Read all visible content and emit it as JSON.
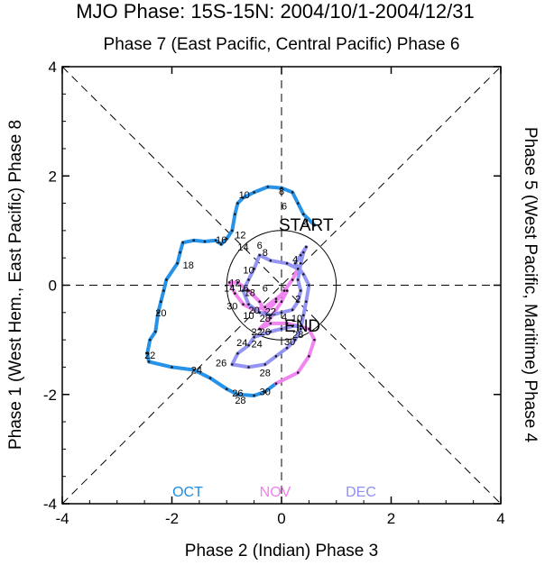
{
  "chart_data": {
    "type": "line",
    "title": "MJO Phase: 15S-15N: 2004/10/1-2004/12/31",
    "top_label": "Phase 7 (East Pacific, Central Pacific) Phase 6",
    "bottom_label": "Phase 2 (Indian) Phase 3",
    "left_label": "Phase 1 (West Hem., East Pacific) Phase 8",
    "right_label": "Phase 5 (West Pacific, Maritime) Phase 4",
    "xlim": [
      -4,
      4
    ],
    "ylim": [
      -4,
      4
    ],
    "x_ticks": [
      -4,
      -2,
      0,
      2,
      4
    ],
    "y_ticks": [
      -4,
      -2,
      0,
      2,
      4
    ],
    "annotations": {
      "start": "START",
      "end": "END"
    },
    "legend": [
      {
        "label": "OCT",
        "color": "#1a8de8"
      },
      {
        "label": "NOV",
        "color": "#f07ff0"
      },
      {
        "label": "DEC",
        "color": "#8f8ff4"
      }
    ],
    "series": [
      {
        "name": "OCT",
        "color": "#1a8de8",
        "points": [
          [
            0.6,
            1.1
          ],
          [
            0.4,
            1.3
          ],
          [
            0.3,
            1.5
          ],
          [
            0.2,
            1.7
          ],
          [
            0.0,
            1.78
          ],
          [
            -0.25,
            1.8
          ],
          [
            -0.5,
            1.7
          ],
          [
            -0.7,
            1.6
          ],
          [
            -0.8,
            1.5
          ],
          [
            -0.85,
            1.3
          ],
          [
            -0.9,
            1.0
          ],
          [
            -1.0,
            0.85
          ],
          [
            -1.1,
            0.75
          ],
          [
            -1.2,
            0.82
          ],
          [
            -1.4,
            0.8
          ],
          [
            -1.6,
            0.82
          ],
          [
            -1.8,
            0.78
          ],
          [
            -1.85,
            0.6
          ],
          [
            -1.9,
            0.4
          ],
          [
            -2.1,
            0.1
          ],
          [
            -2.15,
            -0.1
          ],
          [
            -2.2,
            -0.3
          ],
          [
            -2.25,
            -0.5
          ],
          [
            -2.3,
            -0.85
          ],
          [
            -2.4,
            -1.0
          ],
          [
            -2.45,
            -1.25
          ],
          [
            -2.42,
            -1.4
          ],
          [
            -2.0,
            -1.5
          ],
          [
            -1.6,
            -1.55
          ],
          [
            -1.3,
            -1.7
          ],
          [
            -1.0,
            -1.9
          ],
          [
            -0.8,
            -2.0
          ],
          [
            -0.5,
            -2.02
          ],
          [
            -0.3,
            -1.95
          ],
          [
            -0.1,
            -1.8
          ]
        ]
      },
      {
        "name": "NOV",
        "color": "#f07ff0",
        "points": [
          [
            -0.1,
            -1.8
          ],
          [
            0.3,
            -1.6
          ],
          [
            0.5,
            -1.3
          ],
          [
            0.6,
            -1.0
          ],
          [
            0.5,
            -0.8
          ],
          [
            0.1,
            -0.7
          ],
          [
            -0.2,
            -0.7
          ],
          [
            -0.4,
            -0.8
          ],
          [
            -0.2,
            -0.6
          ],
          [
            0.0,
            -0.3
          ],
          [
            0.1,
            -0.1
          ],
          [
            -0.1,
            -0.25
          ],
          [
            -0.3,
            -0.4
          ],
          [
            -0.5,
            -0.45
          ],
          [
            -0.7,
            -0.35
          ],
          [
            -0.85,
            -0.15
          ],
          [
            -0.95,
            0.05
          ],
          [
            -0.8,
            0.05
          ],
          [
            -0.6,
            -0.1
          ],
          [
            -0.4,
            -0.3
          ],
          [
            -0.3,
            -0.5
          ],
          [
            -0.1,
            -0.3
          ],
          [
            0.05,
            -0.1
          ],
          [
            0.2,
            0.1
          ],
          [
            0.3,
            0.3
          ]
        ]
      },
      {
        "name": "DEC",
        "color": "#8f8ff4",
        "points": [
          [
            0.3,
            0.3
          ],
          [
            0.1,
            0.4
          ],
          [
            -0.2,
            0.45
          ],
          [
            -0.4,
            0.55
          ],
          [
            -0.5,
            0.3
          ],
          [
            -0.6,
            0.1
          ],
          [
            -0.7,
            -0.1
          ],
          [
            -0.6,
            -0.35
          ],
          [
            -0.4,
            -0.5
          ],
          [
            -0.2,
            -0.55
          ],
          [
            0.0,
            -0.5
          ],
          [
            0.2,
            -0.45
          ],
          [
            0.3,
            -0.3
          ],
          [
            0.35,
            -0.1
          ],
          [
            0.3,
            0.1
          ],
          [
            0.35,
            0.4
          ],
          [
            0.4,
            0.6
          ],
          [
            0.45,
            0.7
          ],
          [
            0.35,
            0.55
          ],
          [
            0.25,
            0.4
          ],
          [
            0.4,
            0.2
          ],
          [
            0.5,
            0.0
          ],
          [
            0.45,
            -0.3
          ],
          [
            0.4,
            -0.55
          ],
          [
            0.35,
            -0.8
          ],
          [
            0.25,
            -1.0
          ],
          [
            0.1,
            -1.15
          ],
          [
            -0.1,
            -1.3
          ],
          [
            -0.3,
            -1.45
          ],
          [
            -0.6,
            -1.5
          ],
          [
            -0.9,
            -1.45
          ],
          [
            -0.8,
            -1.25
          ],
          [
            -0.6,
            -1.1
          ],
          [
            -0.5,
            -0.95
          ],
          [
            -0.2,
            -0.85
          ],
          [
            0.0,
            -0.8
          ],
          [
            0.2,
            -0.75
          ],
          [
            0.35,
            -0.75
          ]
        ]
      }
    ],
    "day_labels": [
      {
        "text": "10",
        "x": -0.68,
        "y": 1.66
      },
      {
        "text": "8",
        "x": 0.0,
        "y": 1.72
      },
      {
        "text": "6",
        "x": 0.05,
        "y": 1.45
      },
      {
        "text": "4",
        "x": 0.45,
        "y": 1.15
      },
      {
        "text": "12",
        "x": -0.75,
        "y": 0.92
      },
      {
        "text": "16",
        "x": -1.1,
        "y": 0.83
      },
      {
        "text": "14",
        "x": -0.7,
        "y": 0.7
      },
      {
        "text": "18",
        "x": -1.7,
        "y": 0.37
      },
      {
        "text": "20",
        "x": -2.2,
        "y": -0.5
      },
      {
        "text": "22",
        "x": -2.4,
        "y": -1.28
      },
      {
        "text": "24",
        "x": -1.55,
        "y": -1.55
      },
      {
        "text": "26",
        "x": -0.8,
        "y": -1.97
      },
      {
        "text": "28",
        "x": -0.75,
        "y": -2.1
      },
      {
        "text": "30",
        "x": -0.3,
        "y": -1.95
      },
      {
        "text": "6",
        "x": -0.4,
        "y": 0.73
      },
      {
        "text": "8",
        "x": -0.3,
        "y": 0.6
      },
      {
        "text": "4",
        "x": 0.25,
        "y": 0.48
      },
      {
        "text": "10",
        "x": -0.6,
        "y": 0.28
      },
      {
        "text": "12",
        "x": -0.85,
        "y": 0.05
      },
      {
        "text": "14",
        "x": -0.95,
        "y": -0.05
      },
      {
        "text": "16",
        "x": -0.7,
        "y": -0.05
      },
      {
        "text": "18",
        "x": -0.58,
        "y": -0.13
      },
      {
        "text": "6",
        "x": -0.3,
        "y": -0.05
      },
      {
        "text": "2",
        "x": 0.3,
        "y": -0.25
      },
      {
        "text": "30",
        "x": -0.9,
        "y": -0.38
      },
      {
        "text": "20",
        "x": -0.5,
        "y": -0.45
      },
      {
        "text": "22",
        "x": -0.2,
        "y": -0.48
      },
      {
        "text": "10",
        "x": -0.6,
        "y": -0.55
      },
      {
        "text": "28",
        "x": -0.3,
        "y": -0.6
      },
      {
        "text": "4",
        "x": 0.05,
        "y": -0.58
      },
      {
        "text": "10",
        "x": 0.28,
        "y": -0.6
      },
      {
        "text": "26",
        "x": -0.3,
        "y": -0.85
      },
      {
        "text": "22",
        "x": -0.45,
        "y": -0.85
      },
      {
        "text": "28",
        "x": 0.3,
        "y": -0.9
      },
      {
        "text": "24",
        "x": -0.72,
        "y": -1.05
      },
      {
        "text": "24",
        "x": -0.45,
        "y": -1.07
      },
      {
        "text": "30",
        "x": 0.15,
        "y": -1.03
      },
      {
        "text": "26",
        "x": -1.1,
        "y": -1.42
      },
      {
        "text": "28",
        "x": -0.3,
        "y": -1.6
      }
    ]
  }
}
